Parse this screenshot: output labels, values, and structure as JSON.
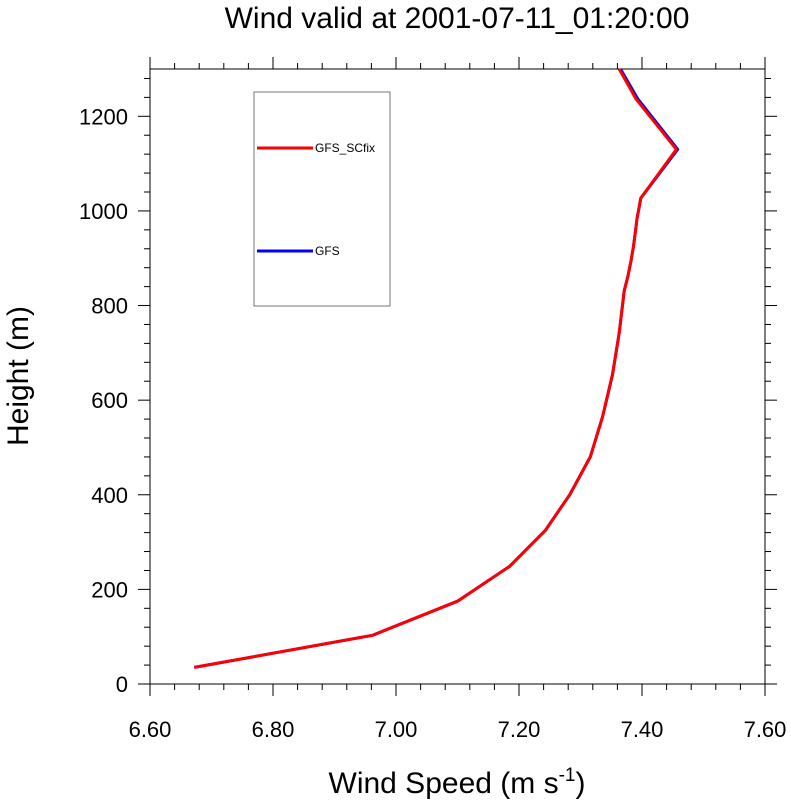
{
  "chart_data": {
    "type": "line",
    "title": "Wind valid at 2001-07-11_01:20:00",
    "xlabel": "Wind Speed (m s",
    "xlabel_sup": "-1",
    "xlabel_close": ")",
    "ylabel": "Height (m)",
    "xlim": [
      6.6,
      7.6
    ],
    "ylim": [
      0,
      1300
    ],
    "x_ticks": [
      6.6,
      6.8,
      7.0,
      7.2,
      7.4,
      7.6
    ],
    "x_tick_labels": [
      "6.60",
      "6.80",
      "7.00",
      "7.20",
      "7.40",
      "7.60"
    ],
    "y_ticks": [
      0,
      200,
      400,
      600,
      800,
      1000,
      1200
    ],
    "y_tick_labels": [
      "0",
      "200",
      "400",
      "600",
      "800",
      "1000",
      "1200"
    ],
    "grid": false,
    "legend_placement": "top-left",
    "series": [
      {
        "name": "GFS",
        "color": "#0000ff",
        "x": [
          6.672,
          6.962,
          7.1,
          7.185,
          7.243,
          7.283,
          7.316,
          7.336,
          7.352,
          7.363,
          7.371,
          7.377,
          7.382,
          7.386,
          7.389,
          7.392,
          7.395,
          7.398,
          7.458,
          7.393,
          7.365
        ],
        "y": [
          35,
          103,
          175,
          249,
          325,
          401,
          480,
          565,
          654,
          742,
          831,
          862,
          893,
          924,
          953,
          985,
          1005,
          1027,
          1130,
          1237,
          1300
        ]
      },
      {
        "name": "GFS_SCfix",
        "color": "#ff0000",
        "x": [
          6.672,
          6.962,
          7.1,
          7.185,
          7.243,
          7.283,
          7.316,
          7.336,
          7.352,
          7.363,
          7.371,
          7.377,
          7.382,
          7.386,
          7.389,
          7.392,
          7.395,
          7.398,
          7.456,
          7.39,
          7.363
        ],
        "y": [
          35,
          103,
          175,
          249,
          325,
          401,
          480,
          565,
          654,
          742,
          831,
          862,
          893,
          924,
          953,
          985,
          1005,
          1027,
          1130,
          1237,
          1300
        ]
      }
    ],
    "legend_order": [
      "GFS_SCfix",
      "GFS"
    ]
  }
}
